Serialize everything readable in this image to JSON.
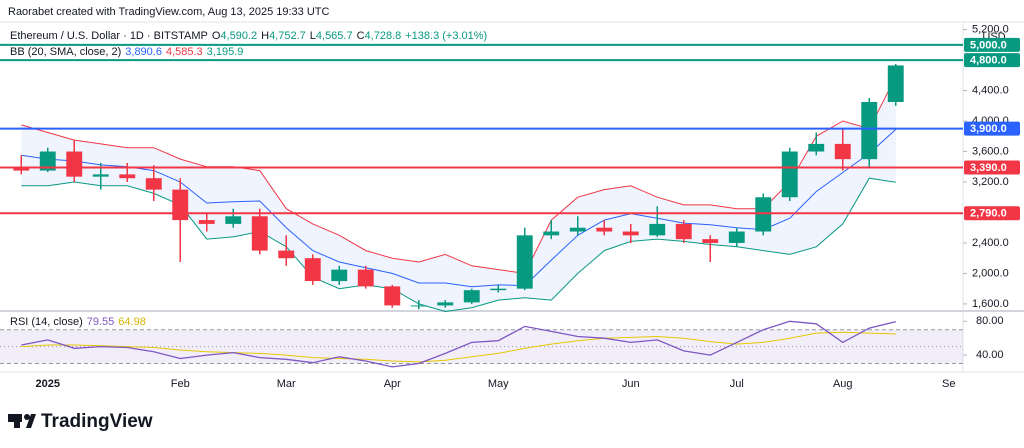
{
  "watermark": "Raorabet created with TradingView.com, Aug 13, 2025 19:33 UTC",
  "brand": "TradingView",
  "currency": "USD",
  "chart_data": [
    {
      "type": "candlestick",
      "title": "Ethereum / U.S. Dollar · 1D · BITSTAMP",
      "ohlc_legend": [
        "O",
        "4,590.2",
        "H",
        "4,752.7",
        "L",
        "4,565.7",
        "C",
        "4,728.8",
        "+138.3 (+3.01%)"
      ],
      "indicator": "BB (20, SMA, close, 2)",
      "indicator_values": [
        "3,890.6",
        "4,585.3",
        "3,195.9"
      ],
      "categories": [
        null,
        "2025",
        null,
        null,
        null,
        null,
        "Feb",
        null,
        null,
        null,
        "Mar",
        null,
        null,
        null,
        "Apr",
        null,
        null,
        null,
        "May",
        null,
        null,
        null,
        null,
        "Jun",
        null,
        null,
        null,
        "Jul",
        null,
        null,
        null,
        "Aug",
        null,
        null,
        null,
        "Se"
      ],
      "open": [
        3400,
        3350,
        3600,
        3270,
        3300,
        3250,
        3100,
        2700,
        2650,
        2750,
        2300,
        2200,
        1900,
        2050,
        1830,
        1580,
        1580,
        1620,
        1780,
        1800,
        2500,
        2550,
        2600,
        2550,
        2500,
        2650,
        2450,
        2400,
        2550,
        3000,
        3600,
        3700,
        3500,
        4250,
        null,
        null
      ],
      "high": [
        3550,
        3650,
        3750,
        3450,
        3450,
        3420,
        3250,
        2800,
        2850,
        2850,
        2500,
        2250,
        2100,
        2100,
        1850,
        1650,
        1650,
        1800,
        1850,
        2600,
        2700,
        2750,
        2700,
        2650,
        2880,
        2700,
        2500,
        2600,
        3050,
        3650,
        3850,
        3900,
        4300,
        4750,
        null,
        null
      ],
      "low": [
        3300,
        3330,
        3200,
        3100,
        3200,
        2950,
        2150,
        2550,
        2600,
        2250,
        2100,
        1850,
        1850,
        1800,
        1550,
        1530,
        1550,
        1600,
        1750,
        1780,
        2450,
        2500,
        2500,
        2400,
        2480,
        2400,
        2150,
        2350,
        2500,
        2950,
        3550,
        3350,
        3400,
        4200,
        null,
        null
      ],
      "close": [
        3350,
        3600,
        3270,
        3300,
        3250,
        3100,
        2700,
        2650,
        2750,
        2300,
        2200,
        1900,
        2050,
        1830,
        1580,
        1580,
        1620,
        1780,
        1800,
        2500,
        2550,
        2600,
        2550,
        2500,
        2650,
        2450,
        2400,
        2550,
        3000,
        3600,
        3700,
        3500,
        4250,
        4730,
        null,
        null
      ],
      "up_color": "#089981",
      "down_color": "#f23645",
      "bands": {
        "upper": [
          3950,
          3850,
          3750,
          3700,
          3650,
          3650,
          3500,
          3400,
          3400,
          3350,
          2850,
          2650,
          2500,
          2300,
          2200,
          2150,
          2250,
          2100,
          2050,
          2000,
          2700,
          3000,
          3100,
          3150,
          3000,
          2900,
          2900,
          2850,
          2850,
          3200,
          3800,
          4000,
          3900,
          4585.3,
          null,
          null
        ],
        "middle": [
          3550,
          3500,
          3475,
          3425,
          3400,
          3350,
          3200,
          2925,
          2940,
          2950,
          2600,
          2300,
          2150,
          2075,
          2000,
          1875,
          1875,
          1825,
          1850,
          1840,
          2175,
          2500,
          2700,
          2785,
          2725,
          2660,
          2640,
          2600,
          2575,
          2725,
          3075,
          3325,
          3575,
          3890.6,
          null,
          null
        ],
        "lower": [
          3150,
          3150,
          3200,
          3150,
          3150,
          3050,
          2900,
          2450,
          2480,
          2550,
          2350,
          1950,
          1800,
          1850,
          1800,
          1600,
          1500,
          1550,
          1650,
          1680,
          1650,
          2000,
          2300,
          2420,
          2450,
          2420,
          2380,
          2350,
          2300,
          2250,
          2350,
          2650,
          3250,
          3195.9,
          null,
          null
        ],
        "upper_color": "#f23645",
        "middle_color": "#2962ff",
        "lower_color": "#089981",
        "fill": "#2962ff"
      },
      "levels": [
        {
          "value": 5000,
          "label": "5,000.0",
          "color": "#089981"
        },
        {
          "value": 4800,
          "label": "4,800.0",
          "color": "#089981"
        },
        {
          "value": 3900,
          "label": "3,900.0",
          "color": "#2962ff"
        },
        {
          "value": 3390,
          "label": "3,390.0",
          "color": "#f23645"
        },
        {
          "value": 2790,
          "label": "2,790.0",
          "color": "#f23645"
        }
      ],
      "ylim": [
        1520,
        5300
      ],
      "yticks": [
        {
          "value": 1600,
          "label": "1,600.0"
        },
        {
          "value": 2000,
          "label": "2,000.0"
        },
        {
          "value": 2400,
          "label": "2,400.0"
        },
        {
          "value": 3200,
          "label": "3,200.0"
        },
        {
          "value": 3600,
          "label": "3,600.0"
        },
        {
          "value": 4000,
          "label": "4,000.0"
        },
        {
          "value": 4400,
          "label": "4,400.0"
        },
        {
          "value": 5200,
          "label": "5,200.0"
        }
      ]
    },
    {
      "type": "line",
      "title": "RSI (14, close)",
      "legend_values": [
        "79.55",
        "64.98"
      ],
      "values": [
        52,
        58,
        48,
        50,
        49,
        44,
        36,
        40,
        43,
        37,
        35,
        31,
        38,
        33,
        26,
        30,
        42,
        55,
        57,
        74,
        68,
        62,
        60,
        55,
        58,
        45,
        40,
        55,
        70,
        80,
        77,
        55,
        72,
        79.55,
        null,
        null
      ],
      "ma": [
        50,
        52,
        52,
        51,
        50,
        49,
        46,
        44,
        43,
        42,
        40,
        37,
        36,
        35,
        33,
        32,
        34,
        38,
        42,
        48,
        53,
        57,
        60,
        61,
        62,
        60,
        56,
        53,
        55,
        60,
        66,
        67,
        66,
        64.98,
        null,
        null
      ],
      "color": "#7e57c2",
      "ma_color": "#e6c800",
      "levels": [
        70,
        50,
        30
      ],
      "ylim": [
        20,
        91
      ],
      "yticks": [
        {
          "value": 40,
          "label": "40.00"
        },
        {
          "value": 80,
          "label": "80.00"
        }
      ]
    }
  ]
}
